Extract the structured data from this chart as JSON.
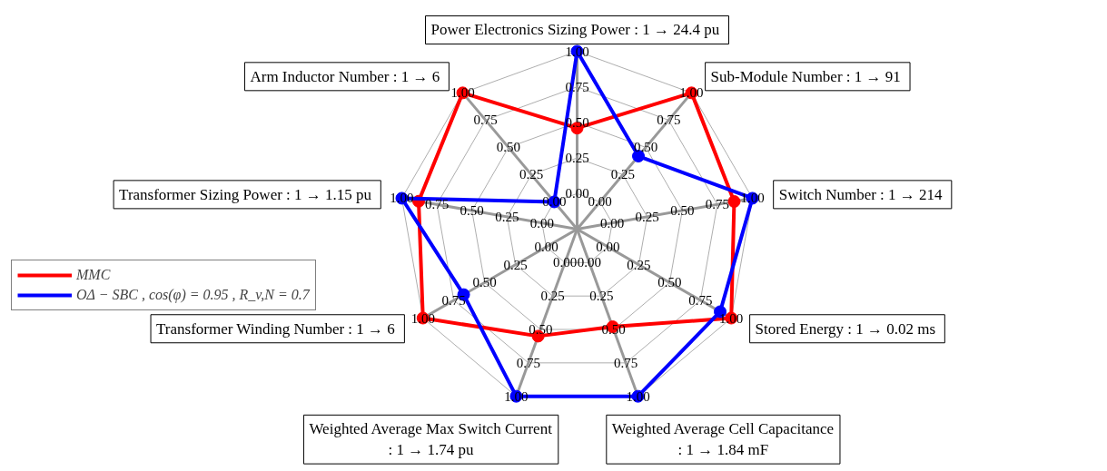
{
  "chart_data": {
    "type": "radar",
    "categories": [
      "Power Electronics Sizing Power  : 1 → 24.4 pu",
      "Sub-Module Number  : 1 → 91",
      "Switch Number  : 1 → 214",
      "Stored Energy  : 1 → 0.02 ms",
      "Weighted Average Cell Capacitance  : 1 → 1.84 mF",
      "Weighted Average Max Switch Current  : 1 → 1.74 pu",
      "Transformer Winding Number  : 1 → 6",
      "Transformer Sizing Power  : 1 → 1.15 pu",
      "Arm Inductor Number  : 1 → 6"
    ],
    "series": [
      {
        "name": "MMC",
        "color": "#ff0000",
        "values": [
          0.46,
          1.0,
          0.87,
          1.0,
          0.48,
          0.55,
          1.0,
          0.88,
          1.0
        ]
      },
      {
        "name": "OΔ − SBC , cos(φ) = 0.95 , R_v,N = 0.7",
        "color": "#0000ff",
        "values": [
          1.0,
          0.42,
          1.0,
          0.91,
          1.0,
          1.0,
          0.67,
          1.0,
          0.0
        ]
      }
    ],
    "ylim": [
      -0.25,
      1
    ],
    "yticks": [
      {
        "value": 0,
        "label": "0.00"
      },
      {
        "value": 0.25,
        "label": "0.25"
      },
      {
        "value": 0.5,
        "label": "0.50"
      },
      {
        "value": 0.75,
        "label": "0.75"
      },
      {
        "value": 1,
        "label": "1.00"
      }
    ],
    "grid": true,
    "legend": "left",
    "marker": "circle",
    "line_style": "solid"
  }
}
